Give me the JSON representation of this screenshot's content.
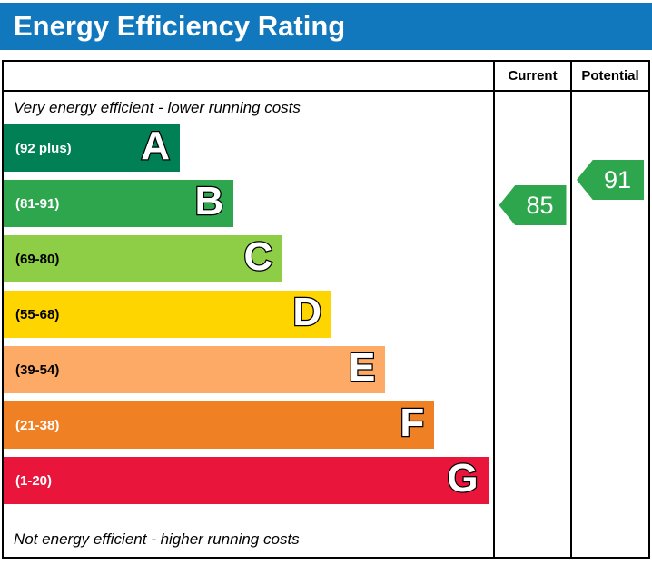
{
  "header": {
    "title": "Energy Efficiency Rating"
  },
  "chart_data": {
    "type": "bar",
    "title": "Energy Efficiency Rating",
    "columns": {
      "current": "Current",
      "potential": "Potential"
    },
    "captions": {
      "top": "Very energy efficient - lower running costs",
      "bottom": "Not energy efficient - higher running costs"
    },
    "bands": [
      {
        "letter": "A",
        "label": "(92 plus)",
        "min": 92,
        "max": 100,
        "color": "#008054",
        "label_color": "#ffffff",
        "width_pct": 36
      },
      {
        "letter": "B",
        "label": "(81-91)",
        "min": 81,
        "max": 91,
        "color": "#2ea64d",
        "label_color": "#ffffff",
        "width_pct": 47
      },
      {
        "letter": "C",
        "label": "(69-80)",
        "min": 69,
        "max": 80,
        "color": "#8dce46",
        "label_color": "#000000",
        "width_pct": 57
      },
      {
        "letter": "D",
        "label": "(55-68)",
        "min": 55,
        "max": 68,
        "color": "#ffd500",
        "label_color": "#000000",
        "width_pct": 67
      },
      {
        "letter": "E",
        "label": "(39-54)",
        "min": 39,
        "max": 54,
        "color": "#fcaa65",
        "label_color": "#000000",
        "width_pct": 78
      },
      {
        "letter": "F",
        "label": "(21-38)",
        "min": 21,
        "max": 38,
        "color": "#ef8023",
        "label_color": "#ffffff",
        "width_pct": 88
      },
      {
        "letter": "G",
        "label": "(1-20)",
        "min": 1,
        "max": 20,
        "color": "#e9153b",
        "label_color": "#ffffff",
        "width_pct": 99
      }
    ],
    "current": {
      "value": 85,
      "band": "B",
      "color": "#2ea64d"
    },
    "potential": {
      "value": 91,
      "band": "B",
      "color": "#2ea64d"
    }
  }
}
